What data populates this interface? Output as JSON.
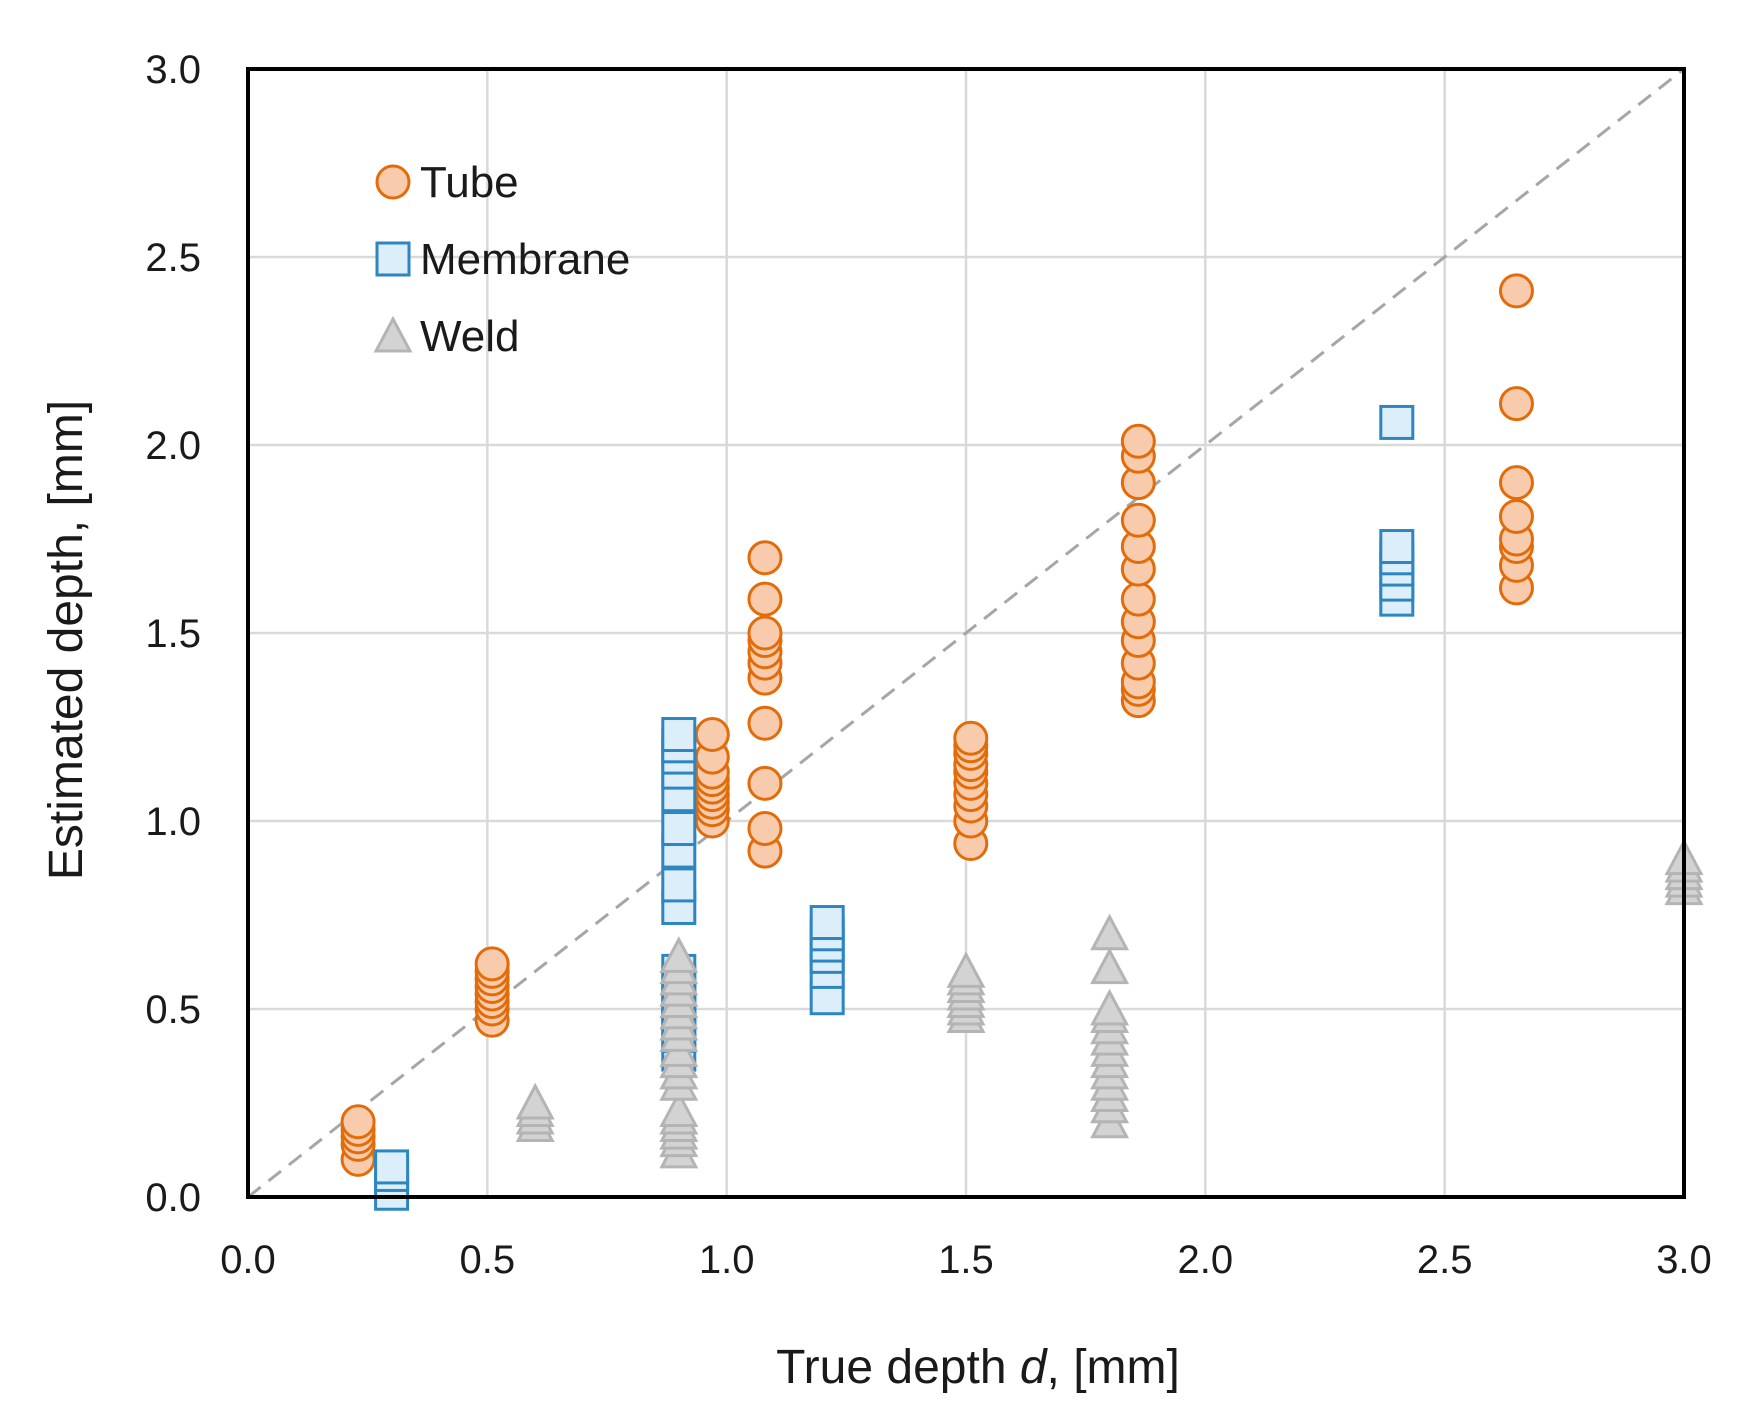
{
  "chart_data": {
    "type": "scatter",
    "title": "",
    "xlabel": "True depth ",
    "xlabel_var": "d",
    "xlabel_unit": ", [mm]",
    "ylabel": "Estimated depth, [mm]",
    "xlim": [
      0.0,
      3.0
    ],
    "ylim": [
      0.0,
      3.0
    ],
    "xticks": [
      "0.0",
      "0.5",
      "1.0",
      "1.5",
      "2.0",
      "2.5",
      "3.0"
    ],
    "yticks": [
      "0.0",
      "0.5",
      "1.0",
      "1.5",
      "2.0",
      "2.5",
      "3.0"
    ],
    "grid": true,
    "reference_line": {
      "type": "y=x",
      "style": "dashed",
      "color": "#a6a6a6"
    },
    "legend_position": "top-left",
    "series": [
      {
        "name": "Tube",
        "marker": "circle",
        "stroke": "#e36c0a",
        "fill": "#f8cbad",
        "points": [
          [
            0.23,
            0.1
          ],
          [
            0.23,
            0.14
          ],
          [
            0.23,
            0.16
          ],
          [
            0.23,
            0.18
          ],
          [
            0.23,
            0.2
          ],
          [
            0.51,
            0.47
          ],
          [
            0.51,
            0.5
          ],
          [
            0.51,
            0.52
          ],
          [
            0.51,
            0.54
          ],
          [
            0.51,
            0.56
          ],
          [
            0.51,
            0.58
          ],
          [
            0.51,
            0.6
          ],
          [
            0.51,
            0.62
          ],
          [
            0.97,
            1.0
          ],
          [
            0.97,
            1.03
          ],
          [
            0.97,
            1.05
          ],
          [
            0.97,
            1.07
          ],
          [
            0.97,
            1.09
          ],
          [
            0.97,
            1.11
          ],
          [
            0.97,
            1.13
          ],
          [
            0.97,
            1.17
          ],
          [
            0.97,
            1.23
          ],
          [
            1.08,
            0.92
          ],
          [
            1.08,
            0.98
          ],
          [
            1.08,
            1.1
          ],
          [
            1.08,
            1.26
          ],
          [
            1.08,
            1.38
          ],
          [
            1.08,
            1.42
          ],
          [
            1.08,
            1.45
          ],
          [
            1.08,
            1.48
          ],
          [
            1.08,
            1.5
          ],
          [
            1.08,
            1.59
          ],
          [
            1.08,
            1.7
          ],
          [
            1.51,
            0.94
          ],
          [
            1.51,
            1.0
          ],
          [
            1.51,
            1.04
          ],
          [
            1.51,
            1.07
          ],
          [
            1.51,
            1.1
          ],
          [
            1.51,
            1.13
          ],
          [
            1.51,
            1.15
          ],
          [
            1.51,
            1.18
          ],
          [
            1.51,
            1.2
          ],
          [
            1.51,
            1.22
          ],
          [
            1.86,
            1.32
          ],
          [
            1.86,
            1.35
          ],
          [
            1.86,
            1.37
          ],
          [
            1.86,
            1.42
          ],
          [
            1.86,
            1.48
          ],
          [
            1.86,
            1.53
          ],
          [
            1.86,
            1.59
          ],
          [
            1.86,
            1.67
          ],
          [
            1.86,
            1.73
          ],
          [
            1.86,
            1.8
          ],
          [
            1.86,
            1.9
          ],
          [
            1.86,
            1.97
          ],
          [
            1.86,
            2.01
          ],
          [
            2.65,
            1.62
          ],
          [
            2.65,
            1.68
          ],
          [
            2.65,
            1.73
          ],
          [
            2.65,
            1.75
          ],
          [
            2.65,
            1.81
          ],
          [
            2.65,
            1.9
          ],
          [
            2.65,
            2.11
          ],
          [
            2.65,
            2.41
          ]
        ]
      },
      {
        "name": "Membrane",
        "marker": "square",
        "stroke": "#2e86c1",
        "fill": "#dbeef9",
        "points": [
          [
            0.3,
            0.01
          ],
          [
            0.3,
            0.06
          ],
          [
            0.3,
            0.08
          ],
          [
            0.9,
            0.38
          ],
          [
            0.9,
            0.43
          ],
          [
            0.9,
            0.47
          ],
          [
            0.9,
            0.5
          ],
          [
            0.9,
            0.53
          ],
          [
            0.9,
            0.57
          ],
          [
            0.9,
            0.6
          ],
          [
            0.9,
            0.77
          ],
          [
            0.9,
            0.83
          ],
          [
            0.9,
            0.92
          ],
          [
            0.9,
            0.98
          ],
          [
            0.9,
            1.07
          ],
          [
            0.9,
            1.13
          ],
          [
            0.9,
            1.17
          ],
          [
            0.9,
            1.2
          ],
          [
            0.9,
            1.23
          ],
          [
            1.21,
            0.53
          ],
          [
            1.21,
            0.6
          ],
          [
            1.21,
            0.64
          ],
          [
            1.21,
            0.67
          ],
          [
            1.21,
            0.7
          ],
          [
            1.21,
            0.73
          ],
          [
            2.4,
            1.59
          ],
          [
            2.4,
            1.63
          ],
          [
            2.4,
            1.67
          ],
          [
            2.4,
            1.7
          ],
          [
            2.4,
            1.73
          ],
          [
            2.4,
            2.06
          ]
        ]
      },
      {
        "name": "Weld",
        "marker": "triangle",
        "stroke": "#b4b4b4",
        "fill": "#d3d3d3",
        "points": [
          [
            0.6,
            0.19
          ],
          [
            0.6,
            0.21
          ],
          [
            0.6,
            0.23
          ],
          [
            0.6,
            0.25
          ],
          [
            0.9,
            0.12
          ],
          [
            0.9,
            0.15
          ],
          [
            0.9,
            0.17
          ],
          [
            0.9,
            0.19
          ],
          [
            0.9,
            0.21
          ],
          [
            0.9,
            0.23
          ],
          [
            0.9,
            0.3
          ],
          [
            0.9,
            0.33
          ],
          [
            0.9,
            0.36
          ],
          [
            0.9,
            0.39
          ],
          [
            0.9,
            0.43
          ],
          [
            0.9,
            0.46
          ],
          [
            0.9,
            0.49
          ],
          [
            0.9,
            0.52
          ],
          [
            0.9,
            0.55
          ],
          [
            0.9,
            0.58
          ],
          [
            0.9,
            0.61
          ],
          [
            0.9,
            0.64
          ],
          [
            1.5,
            0.48
          ],
          [
            1.5,
            0.5
          ],
          [
            1.5,
            0.52
          ],
          [
            1.5,
            0.54
          ],
          [
            1.5,
            0.56
          ],
          [
            1.5,
            0.58
          ],
          [
            1.5,
            0.6
          ],
          [
            1.8,
            0.2
          ],
          [
            1.8,
            0.24
          ],
          [
            1.8,
            0.27
          ],
          [
            1.8,
            0.3
          ],
          [
            1.8,
            0.33
          ],
          [
            1.8,
            0.36
          ],
          [
            1.8,
            0.39
          ],
          [
            1.8,
            0.42
          ],
          [
            1.8,
            0.45
          ],
          [
            1.8,
            0.48
          ],
          [
            1.8,
            0.5
          ],
          [
            1.8,
            0.61
          ],
          [
            1.8,
            0.7
          ],
          [
            3.0,
            0.82
          ],
          [
            3.0,
            0.84
          ],
          [
            3.0,
            0.86
          ],
          [
            3.0,
            0.88
          ],
          [
            3.0,
            0.9
          ]
        ]
      }
    ]
  }
}
